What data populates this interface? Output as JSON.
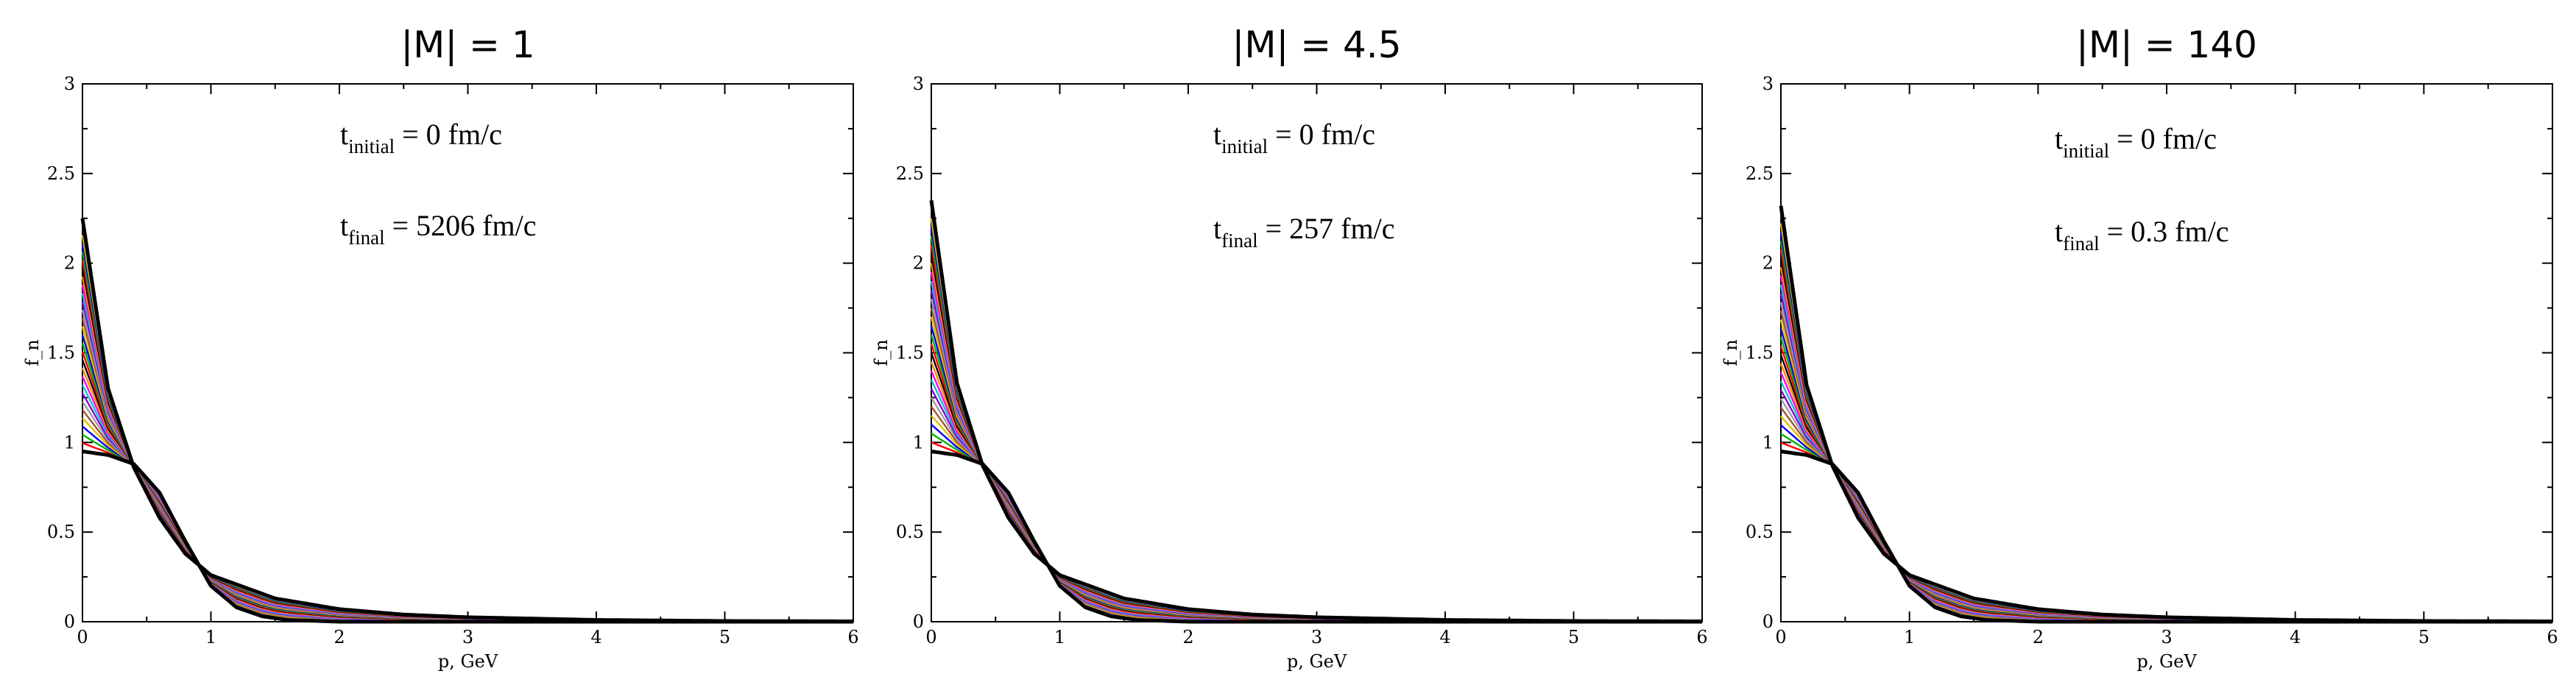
{
  "chart_data": [
    {
      "type": "line",
      "title": "|M| = 1",
      "xlabel": "p, GeV",
      "ylabel": "f_n",
      "xlim": [
        0,
        6
      ],
      "ylim": [
        0,
        3
      ],
      "xticks": [
        "0",
        "1",
        "2",
        "3",
        "4",
        "5",
        "6"
      ],
      "yticks": [
        "0",
        "0.5",
        "1",
        "1.5",
        "2",
        "2.5",
        "3"
      ],
      "grid": false,
      "legend": "none",
      "annotations": [
        {
          "main": "t",
          "sub": "initial",
          "rest": " = 0 fm/c"
        },
        {
          "main": "t",
          "sub": "final",
          "rest": " = 5206 fm/c"
        }
      ],
      "initial_curve": {
        "x": [
          0,
          0.2,
          0.4,
          0.6,
          0.8,
          1.0,
          1.2,
          1.4,
          1.6,
          2,
          3,
          4,
          5,
          6
        ],
        "y": [
          0.95,
          0.93,
          0.88,
          0.72,
          0.45,
          0.2,
          0.08,
          0.03,
          0.01,
          0,
          0,
          0,
          0,
          0
        ]
      },
      "final_curve": {
        "x": [
          0,
          0.2,
          0.4,
          0.6,
          0.8,
          1.0,
          1.5,
          2,
          2.5,
          3,
          4,
          5,
          6
        ],
        "y": [
          2.25,
          1.3,
          0.86,
          0.58,
          0.38,
          0.26,
          0.13,
          0.07,
          0.04,
          0.025,
          0.01,
          0.004,
          0.002
        ]
      },
      "intermediate_series": 28
    },
    {
      "type": "line",
      "title": "|M| = 4.5",
      "xlabel": "p, GeV",
      "ylabel": "f_n",
      "xlim": [
        0,
        6
      ],
      "ylim": [
        0,
        3
      ],
      "xticks": [
        "0",
        "1",
        "2",
        "3",
        "4",
        "5",
        "6"
      ],
      "yticks": [
        "0",
        "0.5",
        "1",
        "1.5",
        "2",
        "2.5",
        "3"
      ],
      "grid": false,
      "legend": "none",
      "annotations": [
        {
          "main": "t",
          "sub": "initial",
          "rest": " = 0 fm/c"
        },
        {
          "main": "t",
          "sub": "final",
          "rest": " = 257 fm/c"
        }
      ],
      "initial_curve": {
        "x": [
          0,
          0.2,
          0.4,
          0.6,
          0.8,
          1.0,
          1.2,
          1.4,
          1.6,
          2,
          3,
          4,
          5,
          6
        ],
        "y": [
          0.95,
          0.93,
          0.88,
          0.72,
          0.45,
          0.2,
          0.08,
          0.03,
          0.01,
          0,
          0,
          0,
          0,
          0
        ]
      },
      "final_curve": {
        "x": [
          0,
          0.2,
          0.4,
          0.6,
          0.8,
          1.0,
          1.5,
          2,
          2.5,
          3,
          4,
          5,
          6
        ],
        "y": [
          2.35,
          1.33,
          0.87,
          0.58,
          0.38,
          0.26,
          0.13,
          0.07,
          0.04,
          0.025,
          0.01,
          0.004,
          0.002
        ]
      },
      "intermediate_series": 28
    },
    {
      "type": "line",
      "title": "|M| = 140",
      "xlabel": "p, GeV",
      "ylabel": "f_n",
      "xlim": [
        0,
        6
      ],
      "ylim": [
        0,
        3
      ],
      "xticks": [
        "0",
        "1",
        "2",
        "3",
        "4",
        "5",
        "6"
      ],
      "yticks": [
        "0",
        "0.5",
        "1",
        "1.5",
        "2",
        "2.5",
        "3"
      ],
      "grid": false,
      "legend": "none",
      "annotations": [
        {
          "main": "t",
          "sub": "initial",
          "rest": " = 0 fm/c"
        },
        {
          "main": "t",
          "sub": "final",
          "rest": " = 0.3 fm/c"
        }
      ],
      "initial_curve": {
        "x": [
          0,
          0.2,
          0.4,
          0.6,
          0.8,
          1.0,
          1.2,
          1.4,
          1.6,
          2,
          3,
          4,
          5,
          6
        ],
        "y": [
          0.95,
          0.93,
          0.88,
          0.72,
          0.45,
          0.2,
          0.08,
          0.03,
          0.01,
          0,
          0,
          0,
          0,
          0
        ]
      },
      "final_curve": {
        "x": [
          0,
          0.2,
          0.4,
          0.6,
          0.8,
          1.0,
          1.5,
          2,
          2.5,
          3,
          4,
          5,
          6
        ],
        "y": [
          2.32,
          1.32,
          0.87,
          0.58,
          0.38,
          0.26,
          0.13,
          0.07,
          0.04,
          0.025,
          0.01,
          0.004,
          0.002
        ]
      },
      "intermediate_series": 28
    }
  ],
  "colors": {
    "axis": "#000000",
    "final_curve": "#000000",
    "series_palette": [
      "#000000",
      "#ff0000",
      "#00b000",
      "#0000ff",
      "#e0c000",
      "#a0522d",
      "#9e9e9e",
      "#8a00d4",
      "#00c8c8",
      "#ff00ff",
      "#ff8c00"
    ]
  }
}
